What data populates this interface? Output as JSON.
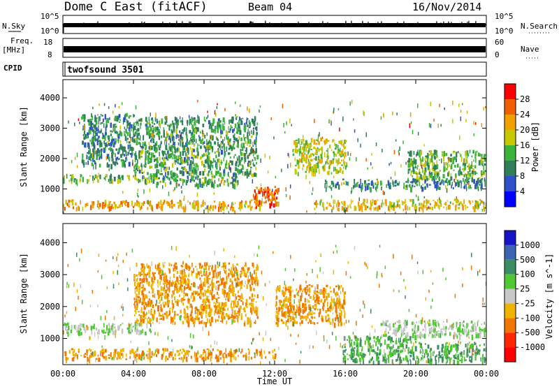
{
  "header": {
    "title": "Dome C East (fitACF)",
    "beam": "Beam 04",
    "date": "16/Nov/2014"
  },
  "panels": {
    "nsky": {
      "label": "N.Sky",
      "ticks": [
        "10^5",
        "10^0"
      ]
    },
    "nsearch": {
      "label": "N.Search",
      "ticks": [
        "10^5",
        "10^0"
      ]
    },
    "freq": {
      "label_line1": "Freq.",
      "label_line2": "[MHz]",
      "ticks": [
        "18",
        "8"
      ]
    },
    "nave": {
      "label": "Nave",
      "ticks": [
        "60",
        "0"
      ]
    },
    "cpid": {
      "label": "CPID",
      "value": "twofsound 3501"
    }
  },
  "chart_data": [
    {
      "type": "heatmap",
      "name": "power",
      "xlabel": "Time UT",
      "ylabel": "Slant Range [km]",
      "xlim": [
        0,
        24
      ],
      "ylim": [
        180,
        4600
      ],
      "x_ticks": [
        "00:00",
        "04:00",
        "08:00",
        "12:00",
        "16:00",
        "20:00",
        "00:00"
      ],
      "y_ticks": [
        1000,
        2000,
        3000,
        4000
      ],
      "colorbar": {
        "label": "Power [dB]",
        "ticks": [
          "4",
          "8",
          "12",
          "16",
          "20",
          "24",
          "28"
        ],
        "levels": [
          0,
          4,
          8,
          12,
          16,
          20,
          24,
          28,
          32
        ],
        "colors": [
          "#0000ff",
          "#3050c8",
          "#2f7f5a",
          "#3cb43c",
          "#c8c800",
          "#f0a000",
          "#f06000",
          "#ff0000"
        ]
      },
      "regions": [
        {
          "t": [
            0,
            11.3
          ],
          "r": [
            380,
            650
          ],
          "v": 22
        },
        {
          "t": [
            14.2,
            24
          ],
          "r": [
            380,
            680
          ],
          "v": 20
        },
        {
          "t": [
            0,
            5.2
          ],
          "r": [
            1300,
            1500
          ],
          "v": 14
        },
        {
          "t": [
            5.2,
            10
          ],
          "r": [
            1150,
            1450
          ],
          "v": 12
        },
        {
          "t": [
            13,
            16
          ],
          "r": [
            1550,
            2700
          ],
          "v": 18
        },
        {
          "t": [
            14.8,
            24
          ],
          "r": [
            1050,
            1350
          ],
          "v": 10
        },
        {
          "t": [
            19.5,
            24
          ],
          "r": [
            1350,
            2300
          ],
          "v": 14
        },
        {
          "t": [
            1,
            4
          ],
          "r": [
            1800,
            3500
          ],
          "v": 10
        },
        {
          "t": [
            4,
            11
          ],
          "r": [
            1500,
            3400
          ],
          "v": 12
        },
        {
          "t": [
            10.8,
            12.2
          ],
          "r": [
            500,
            1100
          ],
          "v": 26
        }
      ]
    },
    {
      "type": "heatmap",
      "name": "velocity",
      "xlabel": "Time UT",
      "ylabel": "Slant Range [km]",
      "xlim": [
        0,
        24
      ],
      "ylim": [
        180,
        4600
      ],
      "x_ticks": [
        "00:00",
        "04:00",
        "08:00",
        "12:00",
        "16:00",
        "20:00",
        "00:00"
      ],
      "y_ticks": [
        1000,
        2000,
        3000,
        4000
      ],
      "colorbar": {
        "label": "Velocity [m s^-1]",
        "ticks": [
          "1000",
          "500",
          "100",
          "25",
          "-25",
          "-100",
          "-500",
          "-1000"
        ],
        "colors": [
          "#1414c8",
          "#3c64b4",
          "#3c8c64",
          "#50c832",
          "#c8c8c8",
          "#f0b400",
          "#f07800",
          "#ff2800",
          "#ff0000"
        ]
      },
      "regions": [
        {
          "t": [
            0,
            12
          ],
          "r": [
            380,
            700
          ],
          "v": -100
        },
        {
          "t": [
            15.8,
            20
          ],
          "r": [
            300,
            1100
          ],
          "v": 100
        },
        {
          "t": [
            20,
            24
          ],
          "r": [
            300,
            900
          ],
          "v": 100
        },
        {
          "t": [
            0,
            5
          ],
          "r": [
            1200,
            1500
          ],
          "v": 25
        },
        {
          "t": [
            12,
            16
          ],
          "r": [
            1500,
            2700
          ],
          "v": -100
        },
        {
          "t": [
            18,
            24
          ],
          "r": [
            1100,
            1600
          ],
          "v": 25
        },
        {
          "t": [
            4,
            11
          ],
          "r": [
            1500,
            3400
          ],
          "v": -100
        }
      ]
    }
  ],
  "colors": {
    "frame": "#000000",
    "background": "#ffffff"
  }
}
